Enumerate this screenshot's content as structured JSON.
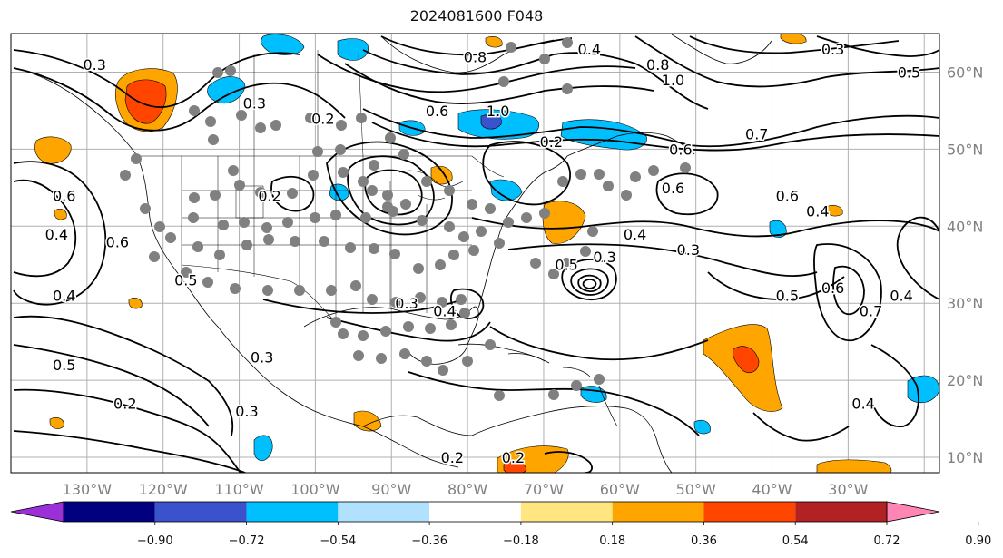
{
  "title": "2024081600 F048",
  "map": {
    "lon_labels": [
      "130°W",
      "120°W",
      "110°W",
      "100°W",
      "90°W",
      "80°W",
      "70°W",
      "60°W",
      "50°W",
      "40°W",
      "30°W"
    ],
    "lat_labels": [
      "60°N",
      "50°N",
      "40°N",
      "30°N",
      "20°N",
      "10°N"
    ],
    "grid": true,
    "land_color": "#ffffff",
    "grid_color": "#b0b0b0",
    "contour_color": "#000000",
    "station_color": "#808080"
  },
  "colorbar": {
    "ticks": [
      "−0.90",
      "−0.72",
      "−0.54",
      "−0.36",
      "−0.18",
      "0.18",
      "0.36",
      "0.54",
      "0.72",
      "0.90"
    ],
    "colors": [
      "#9b30d9",
      "#000080",
      "#3a52cc",
      "#00bfff",
      "#b0e2ff",
      "#ffffff",
      "#ffe680",
      "#ffa500",
      "#ff4500",
      "#b22222",
      "#ff85b4"
    ],
    "extend": "both"
  },
  "contour_labels": [
    {
      "text": "0.3",
      "lon": -129,
      "lat": 61
    },
    {
      "text": "0.3",
      "lon": -108,
      "lat": 56
    },
    {
      "text": "0.2",
      "lon": -99,
      "lat": 54
    },
    {
      "text": "0.2",
      "lon": -106,
      "lat": 44
    },
    {
      "text": "0.6",
      "lon": -84,
      "lat": 55
    },
    {
      "text": "0.8",
      "lon": -79,
      "lat": 62
    },
    {
      "text": "1.0",
      "lon": -76,
      "lat": 55
    },
    {
      "text": "0.4",
      "lon": -64,
      "lat": 63
    },
    {
      "text": "0.8",
      "lon": -55,
      "lat": 61
    },
    {
      "text": "1.0",
      "lon": -53,
      "lat": 59
    },
    {
      "text": "0.7",
      "lon": -42,
      "lat": 52
    },
    {
      "text": "0.6",
      "lon": -52,
      "lat": 50
    },
    {
      "text": "0.2",
      "lon": -69,
      "lat": 51
    },
    {
      "text": "0.5",
      "lon": -22,
      "lat": 60
    },
    {
      "text": "0.3",
      "lon": -32,
      "lat": 63
    },
    {
      "text": "0.6",
      "lon": -53,
      "lat": 45
    },
    {
      "text": "0.6",
      "lon": -38,
      "lat": 44
    },
    {
      "text": "0.4",
      "lon": -34,
      "lat": 42
    },
    {
      "text": "0.4",
      "lon": -58,
      "lat": 39
    },
    {
      "text": "0.3",
      "lon": -51,
      "lat": 37
    },
    {
      "text": "0.3",
      "lon": -62,
      "lat": 36
    },
    {
      "text": "0.5",
      "lon": -67,
      "lat": 35
    },
    {
      "text": "0.6",
      "lon": -133,
      "lat": 44
    },
    {
      "text": "0.4",
      "lon": -134,
      "lat": 39
    },
    {
      "text": "0.6",
      "lon": -126,
      "lat": 38
    },
    {
      "text": "0.5",
      "lon": -117,
      "lat": 33
    },
    {
      "text": "0.4",
      "lon": -133,
      "lat": 31
    },
    {
      "text": "0.5",
      "lon": -133,
      "lat": 22
    },
    {
      "text": "0.2",
      "lon": -125,
      "lat": 17
    },
    {
      "text": "0.3",
      "lon": -109,
      "lat": 16
    },
    {
      "text": "0.3",
      "lon": -107,
      "lat": 23
    },
    {
      "text": "0.3",
      "lon": -88,
      "lat": 30
    },
    {
      "text": "0.4",
      "lon": -83,
      "lat": 29
    },
    {
      "text": "0.5",
      "lon": -38,
      "lat": 31
    },
    {
      "text": "0.6",
      "lon": -32,
      "lat": 32
    },
    {
      "text": "0.7",
      "lon": -27,
      "lat": 29
    },
    {
      "text": "0.4",
      "lon": -23,
      "lat": 31
    },
    {
      "text": "0.4",
      "lon": -28,
      "lat": 17
    },
    {
      "text": "0.2",
      "lon": -74,
      "lat": 10
    },
    {
      "text": "0.2",
      "lon": -82,
      "lat": 10
    }
  ]
}
